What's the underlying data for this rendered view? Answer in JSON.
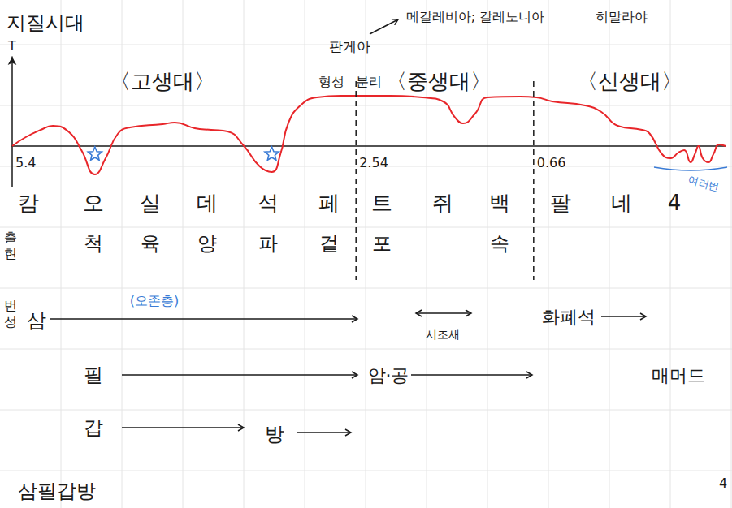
{
  "title": "지질시대",
  "chart_data": {
    "type": "line",
    "y_label": "T",
    "color": "#e8262a",
    "x": [
      0,
      1.7,
      4.0,
      5.7,
      8.0,
      9.7,
      11.6,
      13.1,
      14.8,
      16.5,
      21.1,
      22.8,
      25.6,
      27.9,
      30.2,
      32.5,
      34.7,
      36.4,
      37.6,
      38.7,
      40.4,
      42.7,
      46.1,
      48.4,
      53.0,
      57.5,
      60.4,
      62.1,
      63.2,
      64.9,
      66.6,
      71.2,
      73.5,
      75.7,
      80.3,
      82.6,
      84.9,
      88.3,
      89.4,
      91.1,
      92.3,
      93.4,
      94.2,
      95.1,
      95.7,
      96.2,
      96.8,
      97.6,
      98.3,
      99.1,
      100
    ],
    "values": [
      0,
      0.2,
      0.4,
      0.5,
      0.34,
      -0.1,
      -0.7,
      -0.3,
      0.3,
      0.46,
      0.54,
      0.58,
      0.44,
      0.4,
      0.36,
      0,
      -0.5,
      -0.64,
      -0.2,
      0.56,
      1.0,
      1.2,
      1.24,
      1.24,
      1.24,
      1.2,
      1.1,
      0.7,
      0.56,
      0.8,
      1.2,
      1.22,
      1.2,
      1.1,
      1.0,
      0.84,
      0.5,
      0.4,
      0.3,
      -0.2,
      -0.3,
      -0.16,
      -0.1,
      -0.4,
      -0.2,
      0,
      -0.3,
      -0.4,
      -0.2,
      0.04,
      0
    ],
    "xlim": [
      0,
      100
    ],
    "ylim": [
      -1,
      2.2
    ],
    "grid": false,
    "tick_labels": false,
    "boundaries": [
      {
        "x": 0,
        "label": "5.4"
      },
      {
        "x": 48.2,
        "label": "2.54",
        "line_style": "dashed"
      },
      {
        "x": 73.1,
        "label": "0.66",
        "line_style": "dashed"
      }
    ],
    "markers": [
      {
        "x": 11.6,
        "y": -0.2,
        "marker": "star",
        "color": "#3a7bd5"
      },
      {
        "x": 36.4,
        "y": -0.2,
        "marker": "star",
        "color": "#3a7bd5"
      }
    ]
  },
  "eras": [
    "〈고생대〉",
    "〈중생대〉",
    "〈신생대〉"
  ],
  "annotations": {
    "pangaea": "판게아",
    "formation": "형성",
    "separation": "분리",
    "mesozoic_mountains": "메갈레비아; 갈레노니아",
    "cenozoic_mountains": "히말라야",
    "ice_ages": "여러번"
  },
  "periods": [
    "캄",
    "오",
    "실",
    "데",
    "석",
    "페",
    "트",
    "쥐",
    "백",
    "팔",
    "네",
    "4"
  ],
  "appearance": {
    "label": "출현",
    "items": [
      {
        "period": 1,
        "text": "척"
      },
      {
        "period": 2,
        "text": "육"
      },
      {
        "period": 3,
        "text": "양"
      },
      {
        "period": 4,
        "text": "파"
      },
      {
        "period": 5,
        "text": "겉"
      },
      {
        "period": 6,
        "text": "포"
      },
      {
        "period": 8,
        "text": "속"
      }
    ],
    "note": "(오존층)"
  },
  "flourishing": {
    "label": "번성",
    "items": [
      "삼",
      "시조새",
      "화폐석",
      "필",
      "암·공",
      "매머드",
      "갑",
      "방"
    ]
  },
  "footer": "삼필갑방",
  "page": "4"
}
